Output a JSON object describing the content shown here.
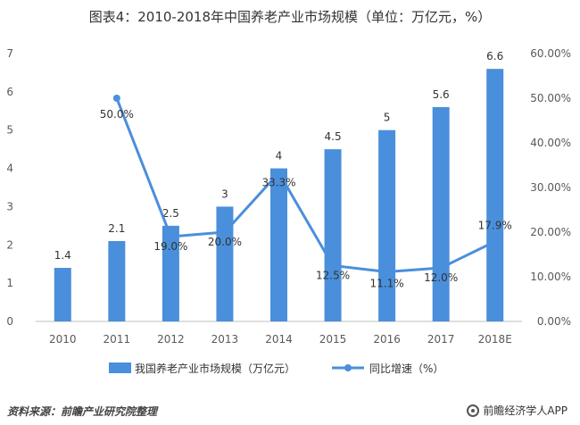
{
  "title": "图表4：2010-2018年中国养老产业市场规模（单位：万亿元，%）",
  "source": "资料来源：前瞻产业研究院整理",
  "brand": "前瞻经济学人APP",
  "colors": {
    "bar": "#4a8fdb",
    "line": "#4a8fdb",
    "grid": "#d9d9d9",
    "axis": "#bfbfbf"
  },
  "chart_data": {
    "type": "bar+line",
    "categories": [
      "2010",
      "2011",
      "2012",
      "2013",
      "2014",
      "2015",
      "2016",
      "2017",
      "2018E"
    ],
    "series": [
      {
        "name": "我国养老产业市场规模（万亿元）",
        "kind": "bar",
        "axis": "left",
        "values": [
          1.4,
          2.1,
          2.5,
          3,
          4,
          4.5,
          5,
          5.6,
          6.6
        ],
        "labels": [
          "1.4",
          "2.1",
          "2.5",
          "3",
          "4",
          "4.5",
          "5",
          "5.6",
          "6.6"
        ]
      },
      {
        "name": "同比增速（%）",
        "kind": "line",
        "axis": "right",
        "values": [
          null,
          50.0,
          19.0,
          20.0,
          33.3,
          12.5,
          11.1,
          12.0,
          17.9
        ],
        "labels": [
          "",
          "50.0%",
          "19.0%",
          "20.0%",
          "33.3%",
          "12.5%",
          "11.1%",
          "12.0%",
          "17.9%"
        ]
      }
    ],
    "yleft": {
      "lim": [
        0,
        7
      ],
      "ticks": [
        "0",
        "1",
        "2",
        "3",
        "4",
        "5",
        "6",
        "7"
      ]
    },
    "yright": {
      "lim": [
        0,
        60
      ],
      "ticks": [
        "0.00%",
        "10.00%",
        "20.00%",
        "30.00%",
        "40.00%",
        "50.00%",
        "60.00%"
      ]
    },
    "legend_position": "bottom",
    "grid": false
  }
}
